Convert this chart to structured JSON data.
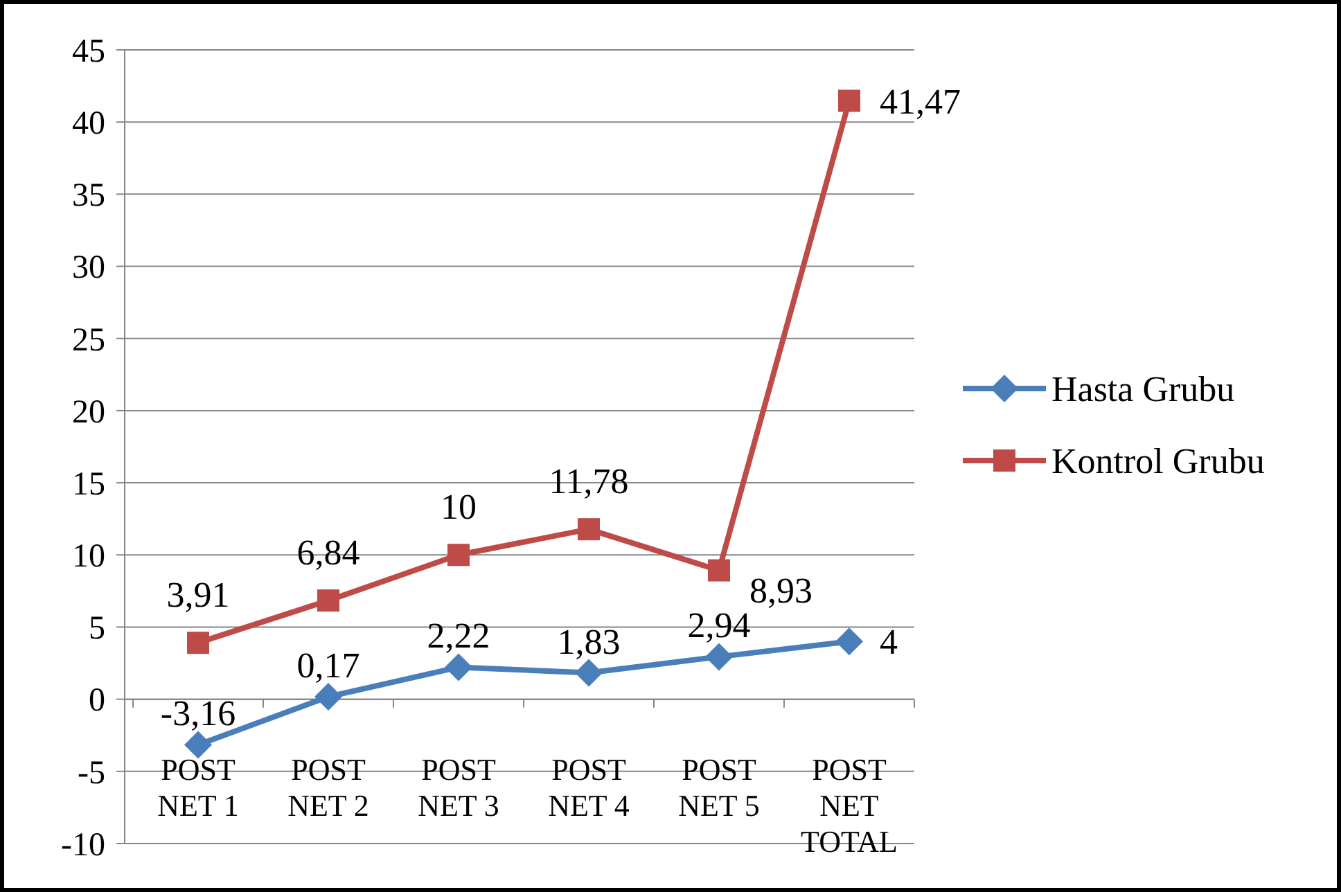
{
  "chart_data": {
    "type": "line",
    "categories": [
      "POST NET 1",
      "POST NET 2",
      "POST NET 3",
      "POST NET 4",
      "POST NET 5",
      "POST NET TOTAL"
    ],
    "series": [
      {
        "name": "Hasta Grubu",
        "color": "#4a7ebb",
        "marker": "diamond",
        "values": [
          -3.16,
          0.17,
          2.22,
          1.83,
          2.94,
          4
        ],
        "value_labels": [
          "-3,16",
          "0,17",
          "2,22",
          "1,83",
          "2,94",
          "4"
        ]
      },
      {
        "name": "Kontrol Grubu",
        "color": "#be4b48",
        "marker": "square",
        "values": [
          3.91,
          6.84,
          10,
          11.78,
          8.93,
          41.47
        ],
        "value_labels": [
          "3,91",
          "6,84",
          "10",
          "11,78",
          "8,93",
          "41,47"
        ]
      }
    ],
    "ylim": [
      -10,
      45
    ],
    "yticks": [
      -10,
      -5,
      0,
      5,
      10,
      15,
      20,
      25,
      30,
      35,
      40,
      45
    ],
    "grid": "y",
    "legend": "right"
  }
}
